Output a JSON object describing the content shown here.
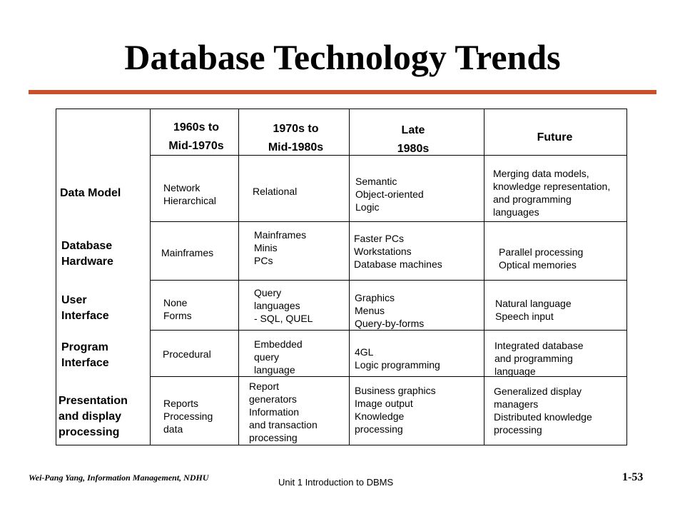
{
  "slide": {
    "title": "Database Technology Trends",
    "columns": [
      {
        "label": "1960s to\nMid-1970s"
      },
      {
        "label": "1970s to\nMid-1980s"
      },
      {
        "label": "Late\n1980s"
      },
      {
        "label": "Future"
      }
    ],
    "rows": [
      {
        "label": "Data Model",
        "cells": [
          "Network\nHierarchical",
          "Relational",
          "Semantic\nObject-oriented\nLogic",
          "Merging data models,\nknowledge representation,\nand programming\nlanguages"
        ]
      },
      {
        "label": "Database\nHardware",
        "cells": [
          "Mainframes",
          "Mainframes\nMinis\nPCs",
          "Faster PCs\nWorkstations\nDatabase machines",
          "Parallel processing\nOptical memories"
        ]
      },
      {
        "label": "User\nInterface",
        "cells": [
          "None\nForms",
          "Query\nlanguages\n- SQL, QUEL",
          "Graphics\nMenus\nQuery-by-forms",
          "Natural language\nSpeech input"
        ]
      },
      {
        "label": "Program\nInterface",
        "cells": [
          "Procedural",
          "Embedded\nquery\nlanguage",
          "4GL\nLogic programming",
          "Integrated database\nand programming\nlanguage"
        ]
      },
      {
        "label": "Presentation\nand display\nprocessing",
        "cells": [
          "Reports\nProcessing\ndata",
          "Report\ngenerators\nInformation\nand transaction\nprocessing",
          "Business graphics\nImage output\nKnowledge\nprocessing",
          "Generalized display\nmanagers\nDistributed knowledge\nprocessing"
        ]
      }
    ]
  },
  "footer": {
    "author": "Wei-Pang Yang, Information Management, NDHU",
    "unit": "Unit 1  Introduction to DBMS",
    "page": "1-53"
  }
}
